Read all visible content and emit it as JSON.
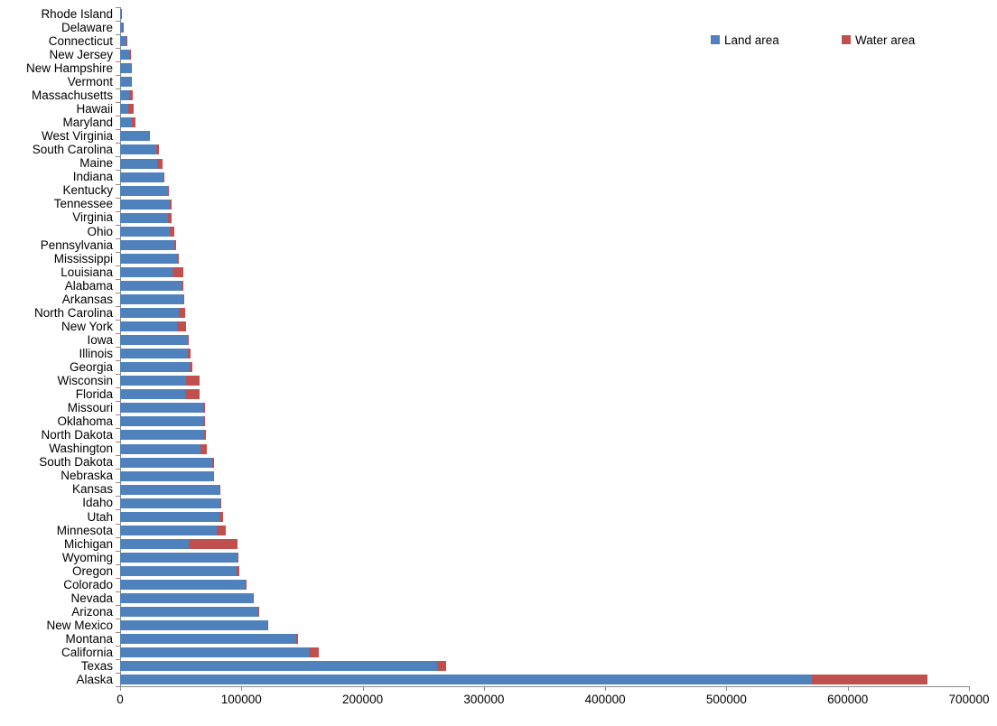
{
  "chart_data": {
    "type": "bar",
    "orientation": "horizontal",
    "stacked": true,
    "title": "",
    "xlabel": "",
    "ylabel": "",
    "xlim": [
      0,
      700000
    ],
    "x_tick_labels": [
      "0",
      "100000",
      "200000",
      "300000",
      "400000",
      "500000",
      "600000",
      "700000"
    ],
    "grid": false,
    "legend_position": "top-right",
    "categories": [
      "Rhode Island",
      "Delaware",
      "Connecticut",
      "New Jersey",
      "New Hampshire",
      "Vermont",
      "Massachusetts",
      "Hawaii",
      "Maryland",
      "West Virginia",
      "South Carolina",
      "Maine",
      "Indiana",
      "Kentucky",
      "Tennessee",
      "Virginia",
      "Ohio",
      "Pennsylvania",
      "Mississippi",
      "Louisiana",
      "Alabama",
      "Arkansas",
      "North Carolina",
      "New York",
      "Iowa",
      "Illinois",
      "Georgia",
      "Wisconsin",
      "Florida",
      "Missouri",
      "Oklahoma",
      "North Dakota",
      "Washington",
      "South Dakota",
      "Nebraska",
      "Kansas",
      "Idaho",
      "Utah",
      "Minnesota",
      "Michigan",
      "Wyoming",
      "Oregon",
      "Colorado",
      "Nevada",
      "Arizona",
      "New Mexico",
      "Montana",
      "California",
      "Texas",
      "Alaska"
    ],
    "series": [
      {
        "name": "Land area",
        "color": "#4F81BD",
        "values": [
          1034,
          1949,
          4842,
          7354,
          8953,
          9217,
          7800,
          6423,
          9707,
          24038,
          30061,
          30843,
          35826,
          39486,
          41235,
          39490,
          40861,
          44743,
          46923,
          43204,
          50645,
          52035,
          48618,
          47126,
          55857,
          55519,
          57513,
          54158,
          53625,
          68742,
          68595,
          69001,
          66456,
          75811,
          76824,
          81759,
          82643,
          82170,
          79627,
          56539,
          97093,
          95988,
          103642,
          109781,
          113594,
          121298,
          145546,
          155779,
          261232,
          570641
        ]
      },
      {
        "name": "Water area",
        "color": "#C0504D",
        "values": [
          511,
          540,
          701,
          1368,
          397,
          400,
          2754,
          4509,
          2699,
          192,
          1960,
          4537,
          593,
          921,
          909,
          3285,
          3965,
          1312,
          1508,
          9174,
          1775,
          1143,
          5201,
          7429,
          416,
          2395,
          1912,
          11339,
          12133,
          996,
          1304,
          1698,
          4842,
          1305,
          524,
          520,
          926,
          2727,
          7329,
          40175,
          720,
          2391,
          452,
          791,
          396,
          292,
          1494,
          7916,
          7365,
          94743
        ]
      }
    ]
  }
}
